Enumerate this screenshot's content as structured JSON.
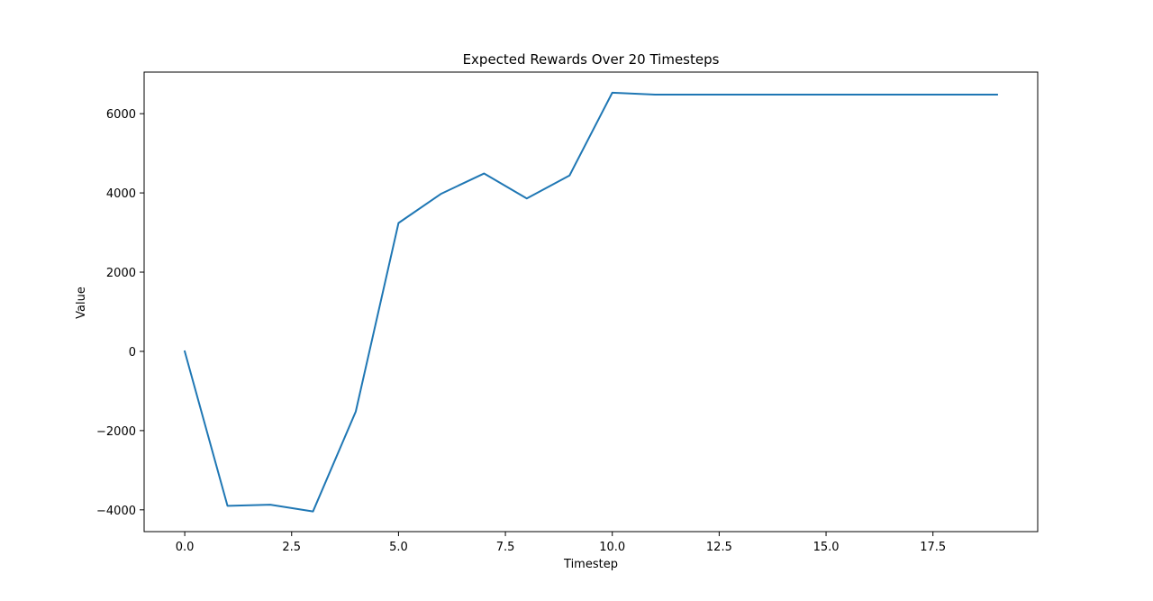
{
  "chart_data": {
    "type": "line",
    "title": "Expected Rewards Over 20 Timesteps",
    "xlabel": "Timestep",
    "ylabel": "Value",
    "xlim": [
      -0.95,
      19.95
    ],
    "ylim": [
      -4550,
      7050
    ],
    "xticks": [
      0.0,
      2.5,
      5.0,
      7.5,
      10.0,
      12.5,
      15.0,
      17.5
    ],
    "xtick_labels": [
      "0.0",
      "2.5",
      "5.0",
      "7.5",
      "10.0",
      "12.5",
      "15.0",
      "17.5"
    ],
    "yticks": [
      -4000,
      -2000,
      0,
      2000,
      4000,
      6000
    ],
    "ytick_labels": [
      "−4000",
      "−2000",
      "0",
      "2000",
      "4000",
      "6000"
    ],
    "grid": false,
    "legend": "none",
    "series": [
      {
        "color": "#1f77b4",
        "x": [
          0,
          1,
          2,
          3,
          4,
          5,
          6,
          7,
          8,
          9,
          10,
          11,
          12,
          13,
          14,
          15,
          16,
          17,
          18,
          19
        ],
        "values": [
          0,
          -3900,
          -3870,
          -4040,
          -1520,
          3240,
          3980,
          4490,
          3860,
          4440,
          6530,
          6480,
          6480,
          6480,
          6480,
          6480,
          6480,
          6480,
          6480,
          6480
        ]
      }
    ]
  }
}
